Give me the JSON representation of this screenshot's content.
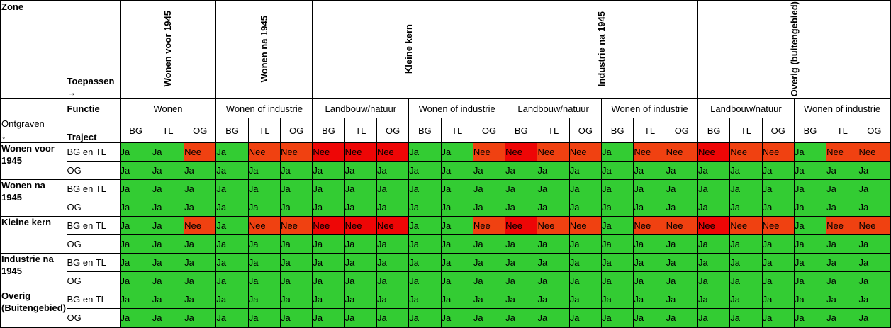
{
  "table": {
    "corner": {
      "zone": "Zone",
      "toepassen": "Toepassen→",
      "functie": "Functie",
      "ontgraven": "Ontgraven",
      "ontgraven_arrow": "↓",
      "traject": "Traject"
    },
    "zone_headers": [
      {
        "label": "Wonen voor 1945",
        "span": 3
      },
      {
        "label": "Wonen na 1945",
        "span": 3
      },
      {
        "label": "Kleine kern",
        "span": 6
      },
      {
        "label": "Industrie na 1945",
        "span": 6
      },
      {
        "label": "Overig (buitengebied)",
        "span": 6
      }
    ],
    "function_headers": [
      "Wonen",
      "Wonen of industrie",
      "Landbouw/natuur",
      "Wonen of industrie",
      "Landbouw/natuur",
      "Wonen of industrie",
      "Landbouw/natuur",
      "Wonen of industrie"
    ],
    "traject_cols": [
      "BG",
      "TL",
      "OG",
      "BG",
      "TL",
      "OG",
      "BG",
      "TL",
      "OG",
      "BG",
      "TL",
      "OG",
      "BG",
      "TL",
      "OG",
      "BG",
      "TL",
      "OG",
      "BG",
      "TL",
      "OG",
      "BG",
      "TL",
      "OG"
    ],
    "cell_legend": {
      "J": {
        "label": "Ja",
        "color": "green"
      },
      "NO": {
        "label": "Nee",
        "color": "orange"
      },
      "NR": {
        "label": "Nee",
        "color": "red"
      }
    },
    "colors": {
      "green": "#33CC33",
      "orange": "#F04111",
      "red": "#EE0606"
    },
    "row_groups": [
      {
        "zone": "Wonen voor 1945",
        "rows": [
          {
            "traject": "BG en TL",
            "values": [
              "J",
              "J",
              "NO",
              "J",
              "NO",
              "NO",
              "NR",
              "NR",
              "NR",
              "J",
              "J",
              "NO",
              "NR",
              "NO",
              "NO",
              "J",
              "NO",
              "NO",
              "NR",
              "NO",
              "NO",
              "J",
              "NO",
              "NO"
            ]
          },
          {
            "traject": "OG",
            "values": [
              "J",
              "J",
              "J",
              "J",
              "J",
              "J",
              "J",
              "J",
              "J",
              "J",
              "J",
              "J",
              "J",
              "J",
              "J",
              "J",
              "J",
              "J",
              "J",
              "J",
              "J",
              "J",
              "J",
              "J"
            ]
          }
        ]
      },
      {
        "zone": "Wonen na 1945",
        "rows": [
          {
            "traject": "BG en TL",
            "values": [
              "J",
              "J",
              "J",
              "J",
              "J",
              "J",
              "J",
              "J",
              "J",
              "J",
              "J",
              "J",
              "J",
              "J",
              "J",
              "J",
              "J",
              "J",
              "J",
              "J",
              "J",
              "J",
              "J",
              "J"
            ]
          },
          {
            "traject": "OG",
            "values": [
              "J",
              "J",
              "J",
              "J",
              "J",
              "J",
              "J",
              "J",
              "J",
              "J",
              "J",
              "J",
              "J",
              "J",
              "J",
              "J",
              "J",
              "J",
              "J",
              "J",
              "J",
              "J",
              "J",
              "J"
            ]
          }
        ]
      },
      {
        "zone": "Kleine kern",
        "rows": [
          {
            "traject": "BG en TL",
            "values": [
              "J",
              "J",
              "NO",
              "J",
              "NO",
              "NO",
              "NR",
              "NR",
              "NR",
              "J",
              "J",
              "NO",
              "NR",
              "NO",
              "NO",
              "J",
              "NO",
              "NO",
              "NR",
              "NO",
              "NO",
              "J",
              "NO",
              "NO"
            ]
          },
          {
            "traject": "OG",
            "values": [
              "J",
              "J",
              "J",
              "J",
              "J",
              "J",
              "J",
              "J",
              "J",
              "J",
              "J",
              "J",
              "J",
              "J",
              "J",
              "J",
              "J",
              "J",
              "J",
              "J",
              "J",
              "J",
              "J",
              "J"
            ]
          }
        ]
      },
      {
        "zone": "Industrie na 1945",
        "rows": [
          {
            "traject": "BG en TL",
            "values": [
              "J",
              "J",
              "J",
              "J",
              "J",
              "J",
              "J",
              "J",
              "J",
              "J",
              "J",
              "J",
              "J",
              "J",
              "J",
              "J",
              "J",
              "J",
              "J",
              "J",
              "J",
              "J",
              "J",
              "J"
            ]
          },
          {
            "traject": "OG",
            "values": [
              "J",
              "J",
              "J",
              "J",
              "J",
              "J",
              "J",
              "J",
              "J",
              "J",
              "J",
              "J",
              "J",
              "J",
              "J",
              "J",
              "J",
              "J",
              "J",
              "J",
              "J",
              "J",
              "J",
              "J"
            ]
          }
        ]
      },
      {
        "zone": "Overig (Buitengebied)",
        "rows": [
          {
            "traject": "BG en TL",
            "values": [
              "J",
              "J",
              "J",
              "J",
              "J",
              "J",
              "J",
              "J",
              "J",
              "J",
              "J",
              "J",
              "J",
              "J",
              "J",
              "J",
              "J",
              "J",
              "J",
              "J",
              "J",
              "J",
              "J",
              "J"
            ]
          },
          {
            "traject": "OG",
            "values": [
              "J",
              "J",
              "J",
              "J",
              "J",
              "J",
              "J",
              "J",
              "J",
              "J",
              "J",
              "J",
              "J",
              "J",
              "J",
              "J",
              "J",
              "J",
              "J",
              "J",
              "J",
              "J",
              "J",
              "J"
            ]
          }
        ]
      }
    ]
  }
}
